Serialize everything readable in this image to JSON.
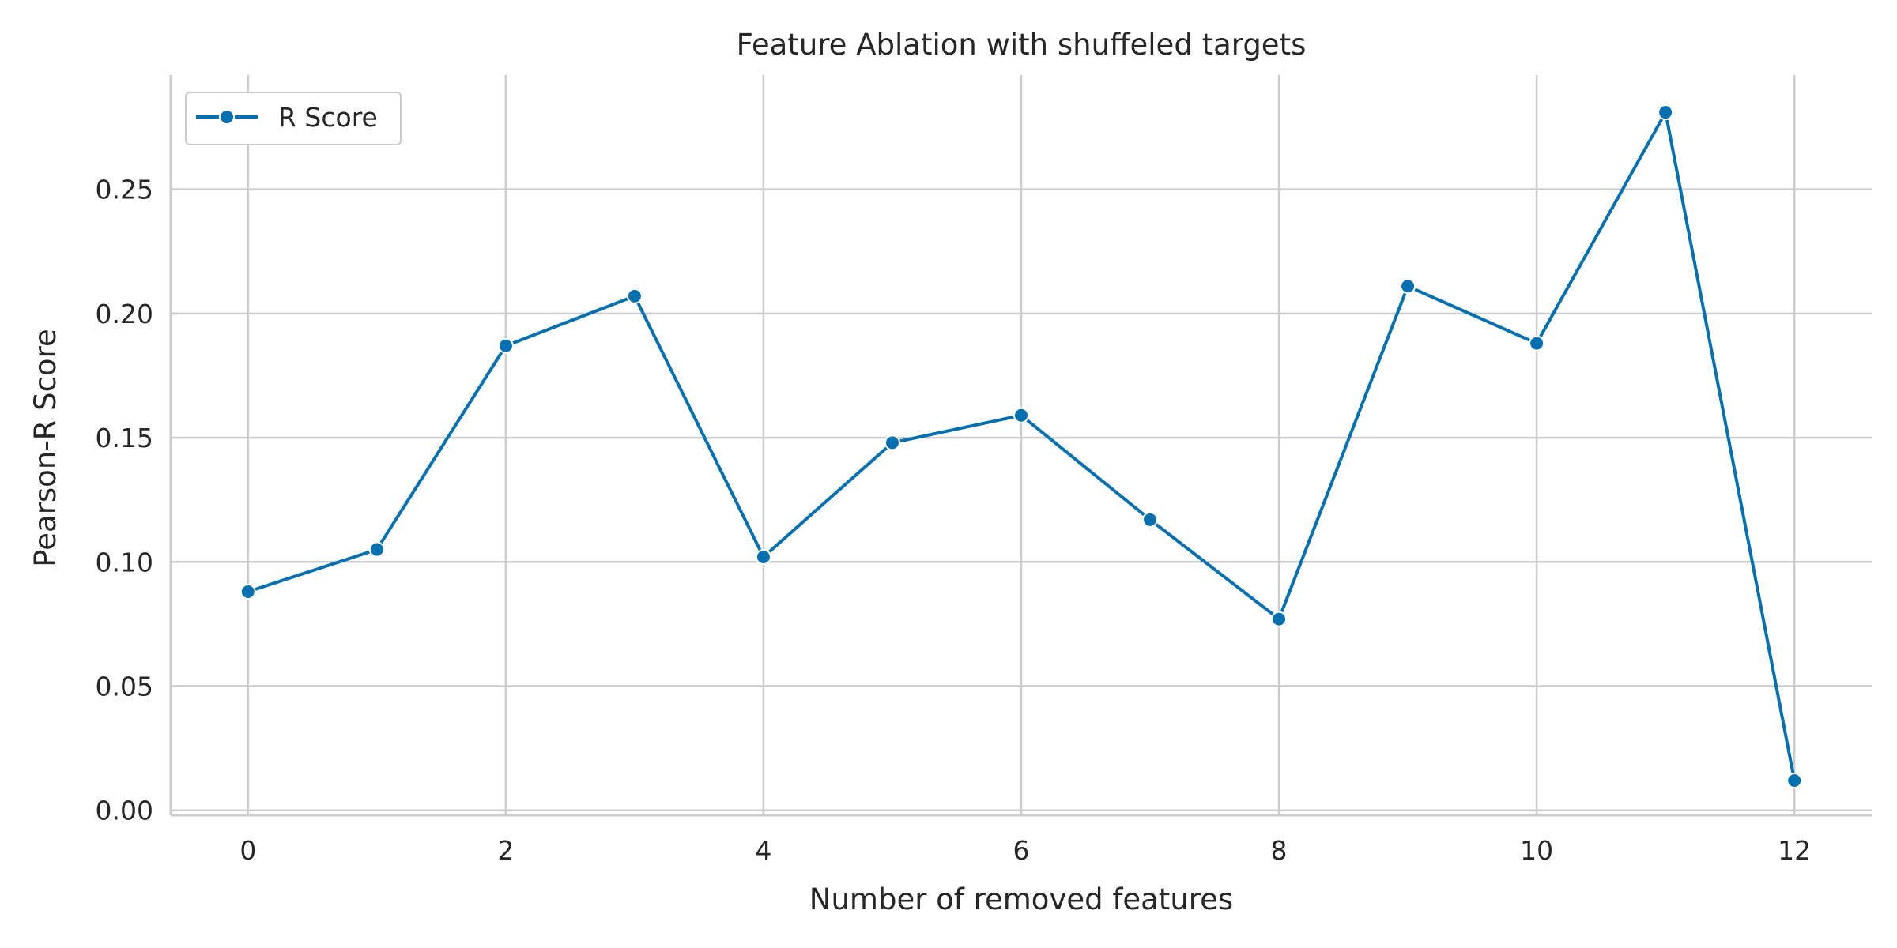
{
  "chart_data": {
    "type": "line",
    "title": "Feature Ablation with shuffeled targets",
    "xlabel": "Number of removed features",
    "ylabel": "Pearson-R Score",
    "xlim": [
      -0.6,
      12.6
    ],
    "ylim": [
      -0.002,
      0.296
    ],
    "xticks": [
      0,
      2,
      4,
      6,
      8,
      10,
      12
    ],
    "xtick_labels": [
      "0",
      "2",
      "4",
      "6",
      "8",
      "10",
      "12"
    ],
    "yticks": [
      0.0,
      0.05,
      0.1,
      0.15,
      0.2,
      0.25
    ],
    "ytick_labels": [
      "0.00",
      "0.05",
      "0.10",
      "0.15",
      "0.20",
      "0.25"
    ],
    "grid": true,
    "legend_position": "top-left",
    "series": [
      {
        "name": "R Score",
        "color": "#0570b0",
        "marker": "circle",
        "x": [
          0,
          1,
          2,
          3,
          4,
          5,
          6,
          7,
          8,
          9,
          10,
          11,
          12
        ],
        "y": [
          0.088,
          0.105,
          0.187,
          0.207,
          0.102,
          0.148,
          0.159,
          0.117,
          0.077,
          0.211,
          0.188,
          0.281,
          0.012
        ]
      }
    ]
  }
}
